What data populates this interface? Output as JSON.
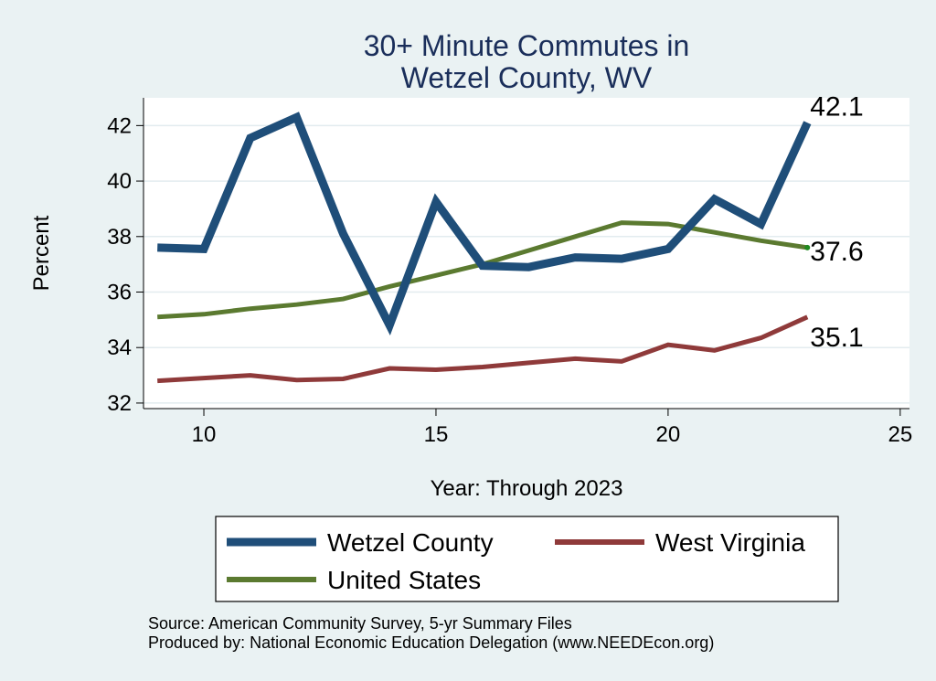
{
  "chart_data": {
    "type": "line",
    "title": [
      "30+ Minute Commutes in",
      "Wetzel County, WV"
    ],
    "xlabel": "Year: Through 2023",
    "ylabel": "Percent",
    "xlim": [
      8.7,
      25.2
    ],
    "ylim": [
      31.8,
      43.0
    ],
    "xticks": [
      10,
      15,
      20,
      25
    ],
    "yticks": [
      32,
      34,
      36,
      38,
      40,
      42
    ],
    "grid": "horizontal",
    "legend_position": "bottom",
    "x": [
      9,
      10,
      11,
      12,
      13,
      14,
      15,
      16,
      17,
      18,
      19,
      20,
      21,
      22,
      23
    ],
    "series": [
      {
        "name": "Wetzel County",
        "color": "#1f4e79",
        "values": [
          37.6,
          37.55,
          41.55,
          42.3,
          38.1,
          34.8,
          39.25,
          36.95,
          36.9,
          37.25,
          37.2,
          37.55,
          39.35,
          38.45,
          42.1
        ],
        "end_label": "42.1"
      },
      {
        "name": "West Virginia",
        "color": "#8f3a3a",
        "values": [
          32.8,
          32.9,
          33.0,
          32.83,
          32.87,
          33.25,
          33.2,
          33.3,
          33.45,
          33.6,
          33.5,
          34.1,
          33.9,
          34.35,
          35.1
        ],
        "end_label": "35.1"
      },
      {
        "name": "United States",
        "color": "#5b7a30",
        "values": [
          35.1,
          35.2,
          35.4,
          35.55,
          35.75,
          36.2,
          36.6,
          37.0,
          37.5,
          38.0,
          38.5,
          38.45,
          38.15,
          37.85,
          37.6
        ],
        "end_label": "37.6"
      }
    ]
  },
  "source_note": "Source: American Community Survey, 5-yr Summary Files",
  "produced_note": "Produced by: National Economic Education Delegation (www.NEEDEcon.org)"
}
